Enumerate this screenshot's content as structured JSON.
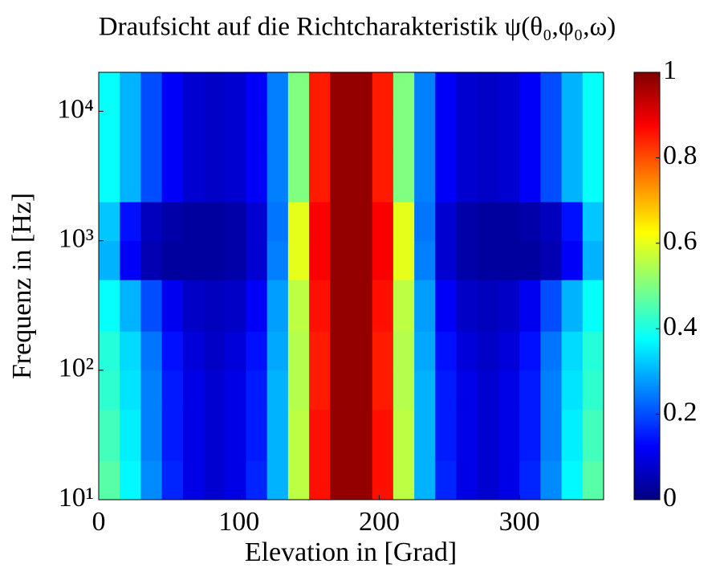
{
  "chart_data": {
    "type": "heatmap",
    "title": "Draufsicht auf die Richtcharakteristik ψ(θ₀,φ₀,ω)",
    "x_label": "Elevation in [Grad]",
    "y_label": "Frequenz in [Hz]",
    "x_edges": [
      0,
      15,
      30,
      45,
      60,
      75,
      90,
      105,
      120,
      135,
      150,
      165,
      180,
      195,
      210,
      225,
      240,
      255,
      270,
      285,
      300,
      315,
      330,
      345,
      360
    ],
    "y_edges": [
      10,
      20,
      50,
      100,
      200,
      500,
      1000,
      2000,
      5000,
      10000,
      20000
    ],
    "values": [
      [
        0.46,
        0.37,
        0.26,
        0.16,
        0.1,
        0.08,
        0.1,
        0.16,
        0.3,
        0.56,
        0.86,
        0.98,
        0.98,
        0.86,
        0.56,
        0.3,
        0.16,
        0.1,
        0.08,
        0.1,
        0.16,
        0.26,
        0.37,
        0.46
      ],
      [
        0.44,
        0.36,
        0.25,
        0.15,
        0.1,
        0.08,
        0.1,
        0.15,
        0.3,
        0.56,
        0.86,
        0.98,
        0.98,
        0.86,
        0.56,
        0.3,
        0.15,
        0.1,
        0.08,
        0.1,
        0.15,
        0.25,
        0.36,
        0.44
      ],
      [
        0.42,
        0.35,
        0.25,
        0.15,
        0.1,
        0.08,
        0.1,
        0.15,
        0.3,
        0.55,
        0.85,
        0.98,
        0.98,
        0.85,
        0.55,
        0.3,
        0.15,
        0.1,
        0.08,
        0.1,
        0.15,
        0.25,
        0.35,
        0.42
      ],
      [
        0.41,
        0.34,
        0.24,
        0.14,
        0.09,
        0.07,
        0.09,
        0.14,
        0.29,
        0.55,
        0.85,
        0.98,
        0.98,
        0.85,
        0.55,
        0.29,
        0.14,
        0.09,
        0.07,
        0.09,
        0.14,
        0.24,
        0.34,
        0.41
      ],
      [
        0.38,
        0.3,
        0.2,
        0.11,
        0.07,
        0.06,
        0.07,
        0.12,
        0.28,
        0.56,
        0.86,
        0.98,
        0.98,
        0.86,
        0.56,
        0.28,
        0.12,
        0.07,
        0.06,
        0.07,
        0.11,
        0.2,
        0.3,
        0.38
      ],
      [
        0.3,
        0.12,
        0.05,
        0.03,
        0.03,
        0.03,
        0.04,
        0.08,
        0.25,
        0.6,
        0.88,
        0.98,
        0.98,
        0.88,
        0.6,
        0.25,
        0.08,
        0.04,
        0.03,
        0.03,
        0.03,
        0.05,
        0.12,
        0.3
      ],
      [
        0.32,
        0.14,
        0.06,
        0.04,
        0.03,
        0.03,
        0.04,
        0.08,
        0.24,
        0.6,
        0.88,
        0.98,
        0.98,
        0.88,
        0.6,
        0.24,
        0.08,
        0.04,
        0.03,
        0.03,
        0.04,
        0.06,
        0.14,
        0.32
      ],
      [
        0.38,
        0.3,
        0.2,
        0.12,
        0.08,
        0.07,
        0.08,
        0.12,
        0.25,
        0.5,
        0.85,
        0.98,
        0.98,
        0.85,
        0.5,
        0.25,
        0.12,
        0.08,
        0.07,
        0.08,
        0.12,
        0.2,
        0.3,
        0.38
      ],
      [
        0.38,
        0.3,
        0.2,
        0.12,
        0.08,
        0.07,
        0.08,
        0.12,
        0.25,
        0.5,
        0.85,
        0.98,
        0.98,
        0.85,
        0.5,
        0.25,
        0.12,
        0.08,
        0.07,
        0.08,
        0.12,
        0.2,
        0.3,
        0.38
      ],
      [
        0.38,
        0.3,
        0.2,
        0.12,
        0.08,
        0.07,
        0.08,
        0.12,
        0.25,
        0.5,
        0.85,
        0.98,
        0.98,
        0.85,
        0.5,
        0.25,
        0.12,
        0.08,
        0.07,
        0.08,
        0.12,
        0.2,
        0.3,
        0.38
      ]
    ],
    "xlim": [
      0,
      360
    ],
    "xticks": [
      0,
      100,
      200,
      300
    ],
    "ylim": [
      10,
      20000
    ],
    "log_y": true,
    "yticks": [
      {
        "value": 10,
        "label": "10¹"
      },
      {
        "value": 100,
        "label": "10²"
      },
      {
        "value": 1000,
        "label": "10³"
      },
      {
        "value": 10000,
        "label": "10⁴"
      }
    ],
    "colormap": "jet",
    "clim": [
      0,
      1
    ],
    "cticks": [
      0,
      0.2,
      0.4,
      0.6,
      0.8,
      1
    ]
  }
}
